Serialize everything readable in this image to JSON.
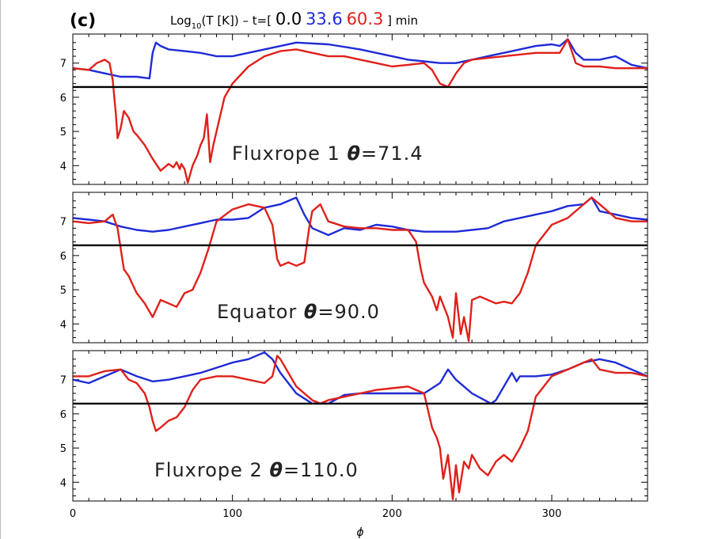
{
  "panel_letter": "(c)",
  "header": {
    "prefix": "Log",
    "subscript": "10",
    "quantity": "(T [K]) – t=[",
    "t0": "0.0",
    "t1": "33.6",
    "t2": "60.3",
    "suffix": "] min",
    "colors": {
      "t0": "#000000",
      "t1": "#1f2bd6",
      "t2": "#e0201a"
    }
  },
  "chart_data": [
    {
      "type": "line",
      "annotation": {
        "name": "Fluxrope 1",
        "theta_symbol": "θ",
        "theta": "=71.4"
      },
      "xlim": [
        0,
        360
      ],
      "ylim": [
        3.45,
        7.85
      ],
      "yticks": [
        4,
        5,
        6,
        7
      ],
      "reference_line": 6.3,
      "series": [
        {
          "color": "#1f2bd6",
          "x": [
            0,
            10,
            20,
            30,
            40,
            48,
            50,
            52,
            55,
            60,
            70,
            80,
            90,
            100,
            120,
            140,
            160,
            180,
            190,
            200,
            210,
            220,
            230,
            240,
            250,
            260,
            270,
            280,
            290,
            300,
            305,
            310,
            315,
            320,
            330,
            340,
            350,
            360
          ],
          "values": [
            6.85,
            6.8,
            6.7,
            6.6,
            6.6,
            6.55,
            7.3,
            7.6,
            7.5,
            7.4,
            7.35,
            7.3,
            7.2,
            7.2,
            7.4,
            7.6,
            7.55,
            7.4,
            7.3,
            7.2,
            7.1,
            7.05,
            7.0,
            7.0,
            7.1,
            7.2,
            7.3,
            7.4,
            7.5,
            7.55,
            7.5,
            7.7,
            7.3,
            7.1,
            7.1,
            7.2,
            6.95,
            6.85
          ]
        },
        {
          "color": "#e0201a",
          "x": [
            0,
            10,
            15,
            20,
            23,
            25,
            27,
            28,
            30,
            32,
            35,
            38,
            40,
            45,
            50,
            55,
            60,
            63,
            65,
            67,
            68,
            70,
            72,
            75,
            78,
            80,
            82,
            84,
            86,
            88,
            90,
            95,
            100,
            110,
            120,
            130,
            140,
            150,
            160,
            170,
            180,
            190,
            200,
            210,
            220,
            225,
            230,
            235,
            240,
            245,
            250,
            260,
            270,
            280,
            290,
            300,
            305,
            310,
            315,
            320,
            330,
            340,
            350,
            360
          ],
          "values": [
            6.85,
            6.8,
            7.0,
            7.1,
            7.0,
            6.5,
            5.5,
            4.8,
            5.1,
            5.6,
            5.4,
            5.0,
            4.9,
            4.6,
            4.2,
            3.85,
            4.05,
            3.95,
            4.1,
            3.9,
            4.05,
            3.9,
            3.5,
            4.0,
            4.3,
            4.6,
            4.8,
            5.5,
            4.1,
            4.6,
            5.0,
            6.0,
            6.4,
            6.9,
            7.2,
            7.35,
            7.4,
            7.3,
            7.2,
            7.2,
            7.1,
            7.0,
            6.9,
            6.95,
            7.0,
            6.8,
            6.4,
            6.3,
            6.7,
            7.0,
            7.1,
            7.15,
            7.2,
            7.25,
            7.3,
            7.3,
            7.3,
            7.7,
            7.0,
            6.9,
            6.9,
            6.85,
            6.85,
            6.85
          ]
        }
      ]
    },
    {
      "type": "line",
      "annotation": {
        "name": "Equator",
        "theta_symbol": "θ",
        "theta": "=90.0"
      },
      "xlim": [
        0,
        360
      ],
      "ylim": [
        3.45,
        7.85
      ],
      "yticks": [
        4,
        5,
        6,
        7
      ],
      "reference_line": 6.3,
      "series": [
        {
          "color": "#1f2bd6",
          "x": [
            0,
            10,
            20,
            30,
            40,
            50,
            60,
            70,
            80,
            90,
            100,
            110,
            120,
            130,
            140,
            145,
            150,
            160,
            170,
            180,
            190,
            200,
            210,
            220,
            230,
            240,
            250,
            260,
            270,
            280,
            290,
            300,
            310,
            320,
            325,
            330,
            340,
            350,
            360
          ],
          "values": [
            7.1,
            7.05,
            7.0,
            6.85,
            6.75,
            6.7,
            6.75,
            6.85,
            6.95,
            7.05,
            7.05,
            7.1,
            7.4,
            7.5,
            7.7,
            7.2,
            6.8,
            6.6,
            6.8,
            6.75,
            6.9,
            6.85,
            6.75,
            6.7,
            6.7,
            6.7,
            6.75,
            6.8,
            7.0,
            7.1,
            7.2,
            7.3,
            7.45,
            7.5,
            7.7,
            7.3,
            7.2,
            7.1,
            7.05
          ]
        },
        {
          "color": "#e0201a",
          "x": [
            0,
            10,
            20,
            25,
            28,
            30,
            32,
            35,
            38,
            40,
            45,
            50,
            55,
            60,
            65,
            70,
            75,
            80,
            85,
            90,
            100,
            110,
            120,
            125,
            128,
            130,
            135,
            140,
            145,
            148,
            150,
            155,
            160,
            170,
            180,
            190,
            200,
            210,
            215,
            218,
            220,
            225,
            228,
            230,
            235,
            238,
            240,
            243,
            245,
            248,
            250,
            255,
            260,
            265,
            270,
            275,
            280,
            285,
            290,
            300,
            310,
            320,
            325,
            330,
            340,
            350,
            360
          ],
          "values": [
            7.0,
            6.95,
            7.0,
            7.2,
            6.8,
            6.2,
            5.6,
            5.4,
            5.1,
            4.9,
            4.6,
            4.2,
            4.7,
            4.6,
            4.5,
            4.9,
            5.0,
            5.5,
            6.2,
            7.0,
            7.35,
            7.5,
            7.4,
            6.9,
            5.9,
            5.7,
            5.8,
            5.7,
            5.8,
            6.8,
            7.3,
            7.5,
            7.0,
            6.85,
            6.8,
            6.8,
            6.75,
            6.75,
            6.4,
            5.6,
            5.2,
            4.8,
            4.4,
            4.8,
            4.2,
            3.6,
            4.9,
            3.7,
            4.2,
            3.5,
            4.7,
            4.8,
            4.7,
            4.6,
            4.65,
            4.6,
            4.9,
            5.5,
            6.3,
            6.9,
            7.1,
            7.5,
            7.7,
            7.5,
            7.1,
            7.0,
            7.0
          ]
        }
      ]
    },
    {
      "type": "line",
      "annotation": {
        "name": "Fluxrope 2",
        "theta_symbol": "θ",
        "theta": "=110.0"
      },
      "xlim": [
        0,
        360
      ],
      "ylim": [
        3.45,
        7.85
      ],
      "yticks": [
        4,
        5,
        6,
        7
      ],
      "reference_line": 6.3,
      "series": [
        {
          "color": "#1f2bd6",
          "x": [
            0,
            10,
            20,
            30,
            40,
            50,
            60,
            70,
            80,
            90,
            100,
            110,
            120,
            125,
            130,
            140,
            150,
            160,
            170,
            180,
            190,
            200,
            210,
            220,
            230,
            235,
            240,
            245,
            250,
            260,
            262,
            265,
            270,
            275,
            278,
            280,
            290,
            300,
            310,
            320,
            330,
            340,
            350,
            360
          ],
          "values": [
            7.0,
            6.9,
            7.1,
            7.3,
            7.1,
            6.95,
            7.0,
            7.1,
            7.2,
            7.35,
            7.5,
            7.6,
            7.8,
            7.6,
            7.2,
            6.6,
            6.3,
            6.3,
            6.55,
            6.6,
            6.6,
            6.6,
            6.6,
            6.6,
            6.9,
            7.3,
            7.0,
            6.8,
            6.6,
            6.35,
            6.3,
            6.4,
            6.8,
            7.2,
            6.95,
            7.1,
            7.1,
            7.15,
            7.3,
            7.5,
            7.6,
            7.5,
            7.3,
            7.1
          ]
        },
        {
          "color": "#e0201a",
          "x": [
            0,
            10,
            20,
            30,
            35,
            40,
            45,
            48,
            50,
            52,
            55,
            60,
            65,
            70,
            75,
            80,
            90,
            100,
            110,
            120,
            125,
            128,
            130,
            135,
            140,
            145,
            150,
            155,
            160,
            170,
            180,
            190,
            200,
            210,
            220,
            225,
            228,
            230,
            232,
            235,
            238,
            240,
            242,
            245,
            248,
            250,
            255,
            260,
            265,
            270,
            275,
            280,
            285,
            290,
            300,
            310,
            320,
            325,
            330,
            340,
            350,
            360
          ],
          "values": [
            7.1,
            7.1,
            7.25,
            7.3,
            7.0,
            6.9,
            6.6,
            6.2,
            5.8,
            5.5,
            5.6,
            5.8,
            5.9,
            6.2,
            6.7,
            7.0,
            7.1,
            7.1,
            7.0,
            6.9,
            7.1,
            7.7,
            7.6,
            7.2,
            6.8,
            6.6,
            6.4,
            6.3,
            6.4,
            6.5,
            6.6,
            6.7,
            6.75,
            6.8,
            6.6,
            5.6,
            5.3,
            5.0,
            4.1,
            4.8,
            3.5,
            4.5,
            3.7,
            4.6,
            4.4,
            4.8,
            4.4,
            4.2,
            4.6,
            4.8,
            4.6,
            5.0,
            5.5,
            6.5,
            7.1,
            7.3,
            7.5,
            7.6,
            7.3,
            7.2,
            7.2,
            7.1
          ]
        }
      ]
    }
  ],
  "x_axis": {
    "ticks": [
      0,
      100,
      200,
      300
    ],
    "label": "ϕ"
  }
}
